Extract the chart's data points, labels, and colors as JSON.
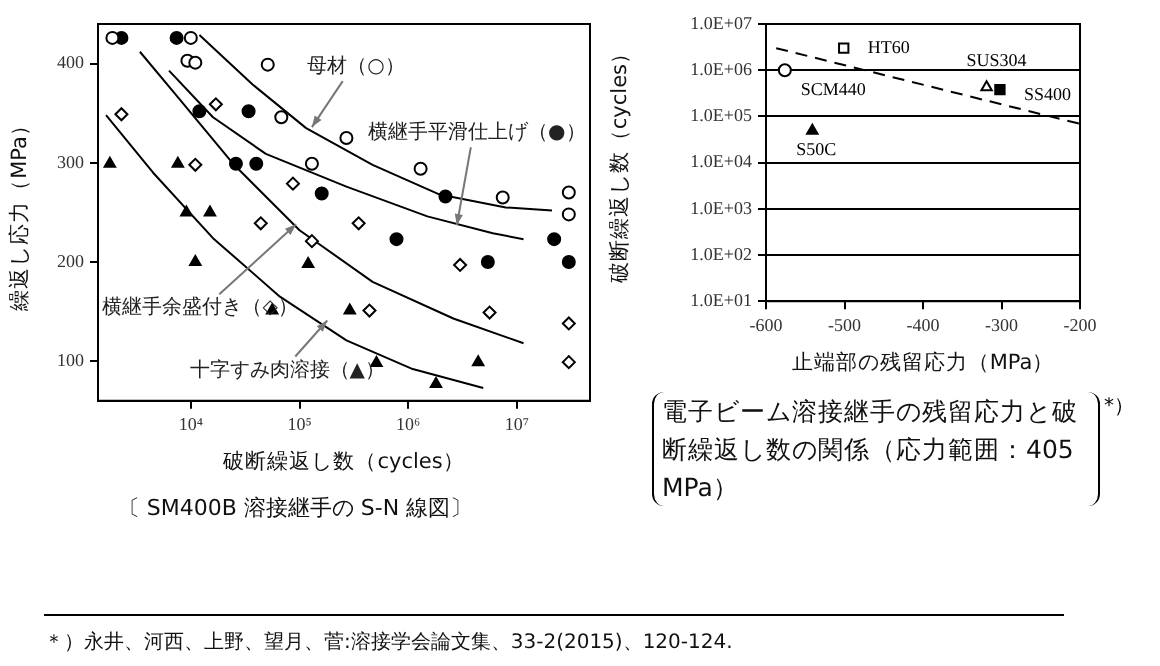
{
  "chart_data": [
    {
      "type": "scatter",
      "title": "〔 SM400B 溶接継手の S-N 線図〕",
      "xlabel": "破断繰返し数（cycles）",
      "ylabel": "繰返し応力（MPa）",
      "log": "x",
      "grid": false,
      "xlim": [
        1400,
        47000000
      ],
      "xticks": [
        {
          "value": 10000,
          "label": "10⁴"
        },
        {
          "value": 100000,
          "label": "10⁵"
        },
        {
          "value": 1000000,
          "label": "10⁶"
        },
        {
          "value": 10000000,
          "label": "10⁷"
        }
      ],
      "ylim": [
        60,
        440
      ],
      "yticks": [
        100,
        200,
        300,
        400
      ],
      "series": [
        {
          "type": "scatter",
          "marker": "circle",
          "color": "#ffffff",
          "x": [
            1900,
            10000,
            9300,
            11000,
            51000,
            68000,
            130000,
            270000,
            1300000,
            7400000,
            30000000,
            30000000
          ],
          "values": [
            426,
            426,
            403,
            401,
            399,
            346,
            299,
            325,
            294,
            265,
            270,
            248
          ]
        },
        {
          "type": "scatter",
          "marker": "circle",
          "color": "#000000",
          "x": [
            2300,
            7400,
            12000,
            34000,
            26000,
            40000,
            160000,
            780000,
            2200000,
            5400000,
            22000000,
            30000000
          ],
          "values": [
            426,
            426,
            352,
            352,
            299,
            299,
            269,
            223,
            266,
            200,
            223,
            200
          ]
        },
        {
          "type": "scatter",
          "marker": "diamond",
          "color": "#ffffff",
          "x": [
            2300,
            11000,
            17000,
            87000,
            44000,
            130000,
            350000,
            440000,
            3000000,
            5600000,
            30000000,
            30000000
          ],
          "values": [
            349,
            298,
            359,
            279,
            239,
            221,
            239,
            151,
            197,
            149,
            138,
            99
          ]
        },
        {
          "type": "scatter",
          "marker": "triangle",
          "color": "#000000",
          "x": [
            1800,
            7600,
            9100,
            15000,
            11000,
            56000,
            120000,
            290000,
            510000,
            1800000,
            4400000
          ],
          "values": [
            299,
            299,
            250,
            250,
            200,
            151,
            198,
            151,
            98,
            77,
            99
          ]
        },
        {
          "type": "line",
          "marker": "none",
          "color": "#000000",
          "x": [
            12000,
            37000,
            115000,
            470000,
            1950000,
            7900000,
            21000000
          ],
          "values": [
            429,
            379,
            335,
            298,
            268,
            255,
            252
          ]
        },
        {
          "type": "line",
          "marker": "none",
          "color": "#000000",
          "x": [
            6300,
            16000,
            49000,
            270000,
            1500000,
            6000000,
            11500000
          ],
          "values": [
            393,
            346,
            309,
            276,
            246,
            229,
            223
          ]
        },
        {
          "type": "line",
          "marker": "none",
          "color": "#000000",
          "x": [
            3400,
            7900,
            25000,
            100000,
            470000,
            2600000,
            11500000
          ],
          "values": [
            412,
            364,
            298,
            232,
            180,
            143,
            118
          ]
        },
        {
          "type": "line",
          "marker": "none",
          "color": "#000000",
          "x": [
            1660,
            4500,
            16000,
            66000,
            270000,
            1100000,
            4900000
          ],
          "values": [
            348,
            290,
            224,
            165,
            121,
            92,
            73
          ]
        }
      ],
      "annotations": [
        {
          "text": "母材（○）",
          "x": 130000,
          "y": 336
        },
        {
          "text": "横継手平滑仕上げ（●）",
          "x": 2800000,
          "y": 237
        },
        {
          "text": "横継手余盛付き（◇）",
          "x": 93000,
          "y": 238
        },
        {
          "text": "十字すみ肉溶接（▲）",
          "x": 180000,
          "y": 141
        }
      ]
    },
    {
      "type": "scatter",
      "title": "電子ビーム溶接継手の残留応力と破断繰返し数の関係（応力範囲：405 MPa）",
      "xlabel": "止端部の残留応力（MPa）",
      "ylabel": "破断繰返し数（cycles）",
      "log": "y",
      "grid": "y",
      "xlim": [
        -600,
        -200
      ],
      "xticks": [
        -600,
        -500,
        -400,
        -300,
        -200
      ],
      "ylim": [
        10,
        10000000
      ],
      "yticks": [
        {
          "value": 10,
          "label": "1.0E+01"
        },
        {
          "value": 100,
          "label": "1.0E+02"
        },
        {
          "value": 1000,
          "label": "1.0E+03"
        },
        {
          "value": 10000,
          "label": "1.0E+04"
        },
        {
          "value": 100000,
          "label": "1.0E+05"
        },
        {
          "value": 1000000,
          "label": "1.0E+06"
        },
        {
          "value": 10000000,
          "label": "1.0E+07"
        }
      ],
      "series": [
        {
          "name": "SCM440",
          "type": "scatter",
          "marker": "circle",
          "color": "#ffffff",
          "x": [
            -576
          ],
          "values": [
            1000000
          ]
        },
        {
          "name": "HT60",
          "type": "scatter",
          "marker": "square",
          "color": "#ffffff",
          "x": [
            -501
          ],
          "values": [
            3000000
          ]
        },
        {
          "name": "SUS304",
          "type": "scatter",
          "marker": "triangle",
          "color": "#ffffff",
          "x": [
            -319
          ],
          "values": [
            430000
          ]
        },
        {
          "name": "SS400",
          "type": "scatter",
          "marker": "square",
          "color": "#000000",
          "x": [
            -302
          ],
          "values": [
            380000
          ]
        },
        {
          "name": "S50C",
          "type": "scatter",
          "marker": "triangle",
          "color": "#000000",
          "x": [
            -541
          ],
          "values": [
            49000
          ]
        },
        {
          "type": "line",
          "marker": "none",
          "line_style": "dashed",
          "color": "#000000",
          "x": [
            -587,
            -200
          ],
          "values": [
            3000000,
            69000
          ]
        }
      ],
      "annotations": [
        "*）",
        "＊）永井、河西、上野、望月、菅:溶接学会論文集、33-2(2015)、120-124."
      ]
    }
  ]
}
